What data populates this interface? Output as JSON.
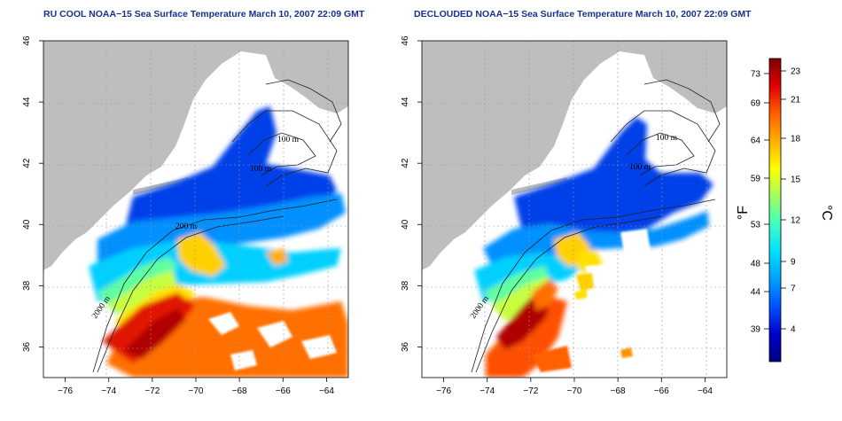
{
  "panels": [
    {
      "title": "RU COOL NOAA−15 Sea Surface Temperature March 10, 2007 22:09 GMT",
      "contour_labels": [
        "100 m",
        "100 m",
        "200 m",
        "2000 m"
      ]
    },
    {
      "title": "DECLOUDED NOAA−15 Sea Surface Temperature March 10, 2007 22:09 GMT",
      "contour_labels": [
        "100 m",
        "100 m",
        "2000 m"
      ]
    }
  ],
  "axes": {
    "x_ticks": [
      "−76",
      "−74",
      "−72",
      "−70",
      "−68",
      "−66",
      "−64"
    ],
    "y_ticks": [
      "36",
      "38",
      "40",
      "42",
      "44",
      "46"
    ],
    "lon_range": [
      -77,
      -63
    ],
    "lat_range": [
      35,
      46
    ]
  },
  "colorbar": {
    "fahrenheit_ticks": [
      "73",
      "69",
      "64",
      "59",
      "53",
      "48",
      "44",
      "39"
    ],
    "celsius_ticks": [
      "23",
      "21",
      "18",
      "15",
      "12",
      "9",
      "7",
      "4"
    ],
    "fahrenheit_unit": "°F",
    "celsius_unit": "°C",
    "colors": [
      "#000080",
      "#0000cd",
      "#0050ff",
      "#00a0ff",
      "#00e0ff",
      "#40ffc0",
      "#a0ff60",
      "#ffff00",
      "#ffb000",
      "#ff6000",
      "#e00000",
      "#800000"
    ]
  },
  "land_color": "#bebebe"
}
